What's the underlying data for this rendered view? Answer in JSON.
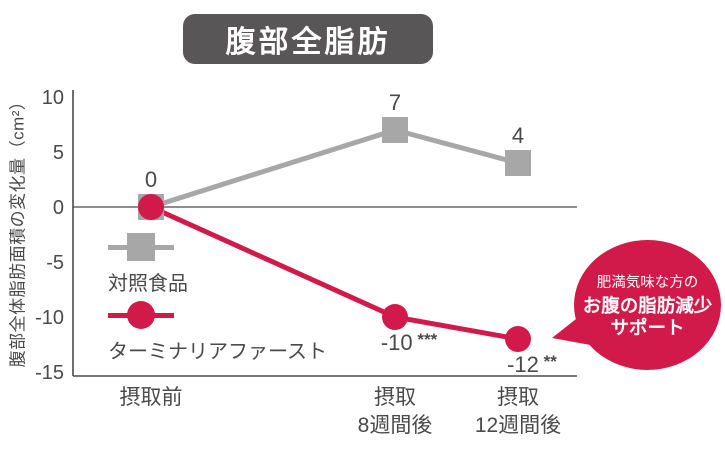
{
  "title_badge": "腹部全脂肪",
  "chart_data": {
    "type": "line",
    "title": "腹部全脂肪",
    "ylabel": "腹部全体脂肪面積の変化量（cm²）",
    "xlabel": "",
    "ylim": [
      -15,
      10
    ],
    "yticks": [
      10,
      5,
      0,
      -5,
      -10,
      -15
    ],
    "zero_line": true,
    "grid": false,
    "legend_position": "middle-left",
    "categories": [
      "摂取前",
      "摂取\n8週間後",
      "摂取\n12週間後"
    ],
    "series": [
      {
        "name": "対照食品",
        "marker": "square",
        "color": "#a7a7a8",
        "values": [
          0,
          7,
          4
        ],
        "point_labels": [
          "0",
          "7",
          "4"
        ],
        "significance": [
          "",
          "",
          ""
        ],
        "label_side": [
          "above",
          "above",
          "above"
        ]
      },
      {
        "name": "ターミナリアファースト",
        "marker": "circle",
        "color": "#d11a4a",
        "values": [
          0,
          -10,
          -12
        ],
        "point_labels": [
          "",
          "-10",
          "-12"
        ],
        "significance": [
          "",
          "***",
          "**"
        ],
        "label_side": [
          "above",
          "below",
          "below"
        ]
      }
    ]
  },
  "annotation_bubble": {
    "lines": [
      "肥満気味な方の",
      "お腹の脂肪減少",
      "サポート"
    ],
    "bg_color": "#d11a4a",
    "text_color": "#ffffff"
  },
  "colors": {
    "badge_bg": "#585656",
    "axis": "#4a4a4a",
    "text": "#4a4a4a"
  }
}
